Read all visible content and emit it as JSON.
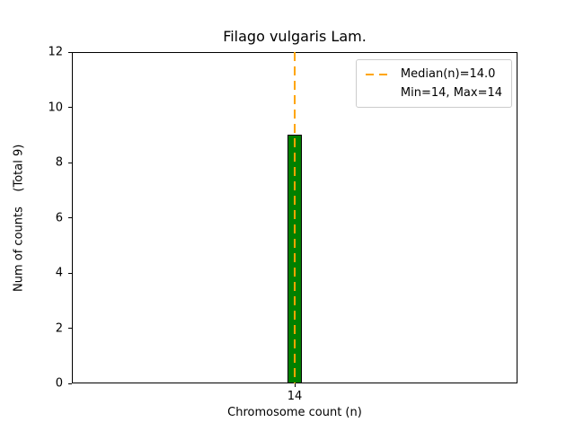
{
  "chart_data": {
    "type": "bar",
    "title": "Filago vulgaris Lam.",
    "xlabel": "Chromosome count (n)",
    "ylabel": "Num of counts    (Total 9)",
    "categories": [
      "14"
    ],
    "values": [
      9
    ],
    "ylim": [
      0,
      12
    ],
    "yticks": [
      0,
      2,
      4,
      6,
      8,
      10,
      12
    ],
    "grid": false,
    "bar_color": "#008000",
    "bar_edge_color": "#000000",
    "median_line": {
      "at_category": "14",
      "value_label": "14.0",
      "color": "#ffa500",
      "style": "dashed"
    },
    "legend": {
      "position": "top-right",
      "entries": [
        {
          "label": "Median(n)=14.0",
          "marker": "dashed-line",
          "color": "#ffa500"
        },
        {
          "label": "Min=14, Max=14",
          "marker": "none",
          "color": ""
        }
      ]
    }
  }
}
